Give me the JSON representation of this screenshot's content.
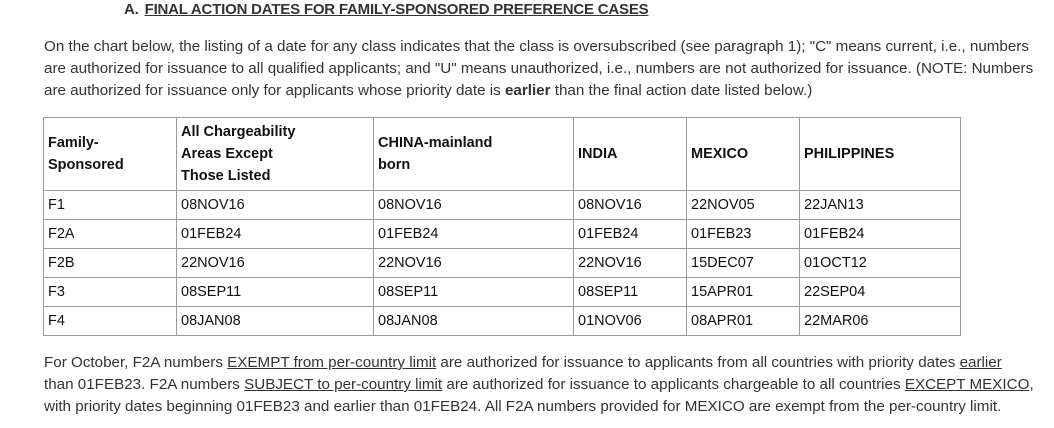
{
  "heading": {
    "letter": "A.",
    "title": "FINAL ACTION DATES FOR FAMILY-SPONSORED PREFERENCE CASES"
  },
  "intro": {
    "part1": "On the chart below, the listing of a date for any class indicates that the class is oversubscribed (see paragraph 1); \"C\" means current, i.e., numbers are authorized for issuance to all qualified applicants; and \"U\" means unauthorized, i.e., numbers are not authorized for issuance. (NOTE: Numbers are authorized for issuance only for applicants whose priority date is ",
    "bold": "earlier",
    "part2": " than the final action date listed below.)"
  },
  "table": {
    "headers": [
      [
        "Family-",
        "Sponsored"
      ],
      [
        "All Chargeability",
        "Areas Except",
        "Those Listed"
      ],
      [
        "CHINA-mainland",
        "born"
      ],
      [
        "INDIA"
      ],
      [
        "MEXICO"
      ],
      [
        "PHILIPPINES"
      ]
    ],
    "rows": [
      [
        "F1",
        "08NOV16",
        "08NOV16",
        "08NOV16",
        "22NOV05",
        "22JAN13"
      ],
      [
        "F2A",
        "01FEB24",
        "01FEB24",
        "01FEB24",
        "01FEB23",
        "01FEB24"
      ],
      [
        "F2B",
        "22NOV16",
        "22NOV16",
        "22NOV16",
        "15DEC07",
        "01OCT12"
      ],
      [
        "F3",
        "08SEP11",
        "08SEP11",
        "08SEP11",
        "15APR01",
        "22SEP04"
      ],
      [
        "F4",
        "08JAN08",
        "08JAN08",
        "01NOV06",
        "08APR01",
        "22MAR06"
      ]
    ]
  },
  "footer": {
    "t1": "For October, F2A numbers ",
    "u1": "EXEMPT from per-country limit",
    "t2": " are authorized for issuance to applicants from all countries with priority dates ",
    "u2": "earlier",
    "t3": " than 01FEB23. F2A numbers ",
    "u3": "SUBJECT to per-country limit",
    "t4": " are authorized for issuance to applicants chargeable to all countries ",
    "u4": "EXCEPT MEXICO",
    "t5": ", with priority dates beginning 01FEB23 and earlier than 01FEB24. All F2A numbers provided for MEXICO are exempt from the per-country limit."
  }
}
